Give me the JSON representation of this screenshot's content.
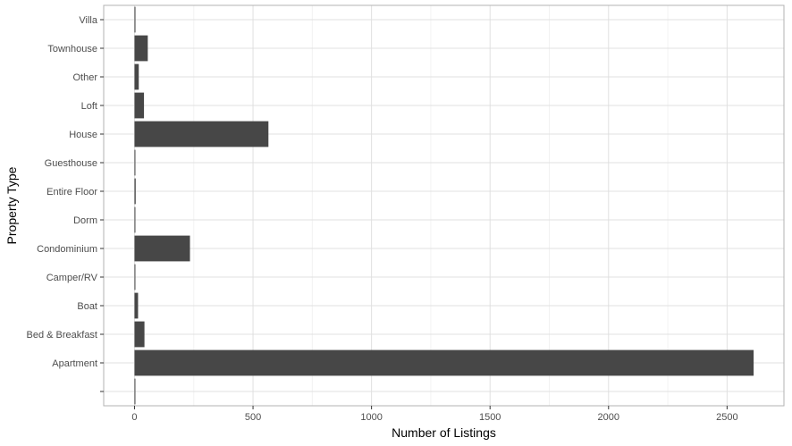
{
  "chart_data": {
    "type": "bar",
    "orientation": "horizontal",
    "xlabel": "Number of Listings",
    "ylabel": "Property Type",
    "xlim": [
      -130,
      2740
    ],
    "x_ticks": [
      0,
      500,
      1000,
      1500,
      2000,
      2500
    ],
    "grid": true,
    "categories": [
      "",
      "Apartment",
      "Bed & Breakfast",
      "Boat",
      "Camper/RV",
      "Condominium",
      "Dorm",
      "Entire Floor",
      "Guesthouse",
      "House",
      "Loft",
      "Other",
      "Townhouse",
      "Villa"
    ],
    "values": [
      3,
      2612,
      42,
      15,
      2,
      234,
      2,
      5,
      2,
      565,
      40,
      18,
      56,
      4
    ],
    "colors": {
      "bar": "#474747",
      "grid_major": "#e0e0e0",
      "grid_minor": "#f2f2f2",
      "border": "#b3b3b3"
    }
  }
}
